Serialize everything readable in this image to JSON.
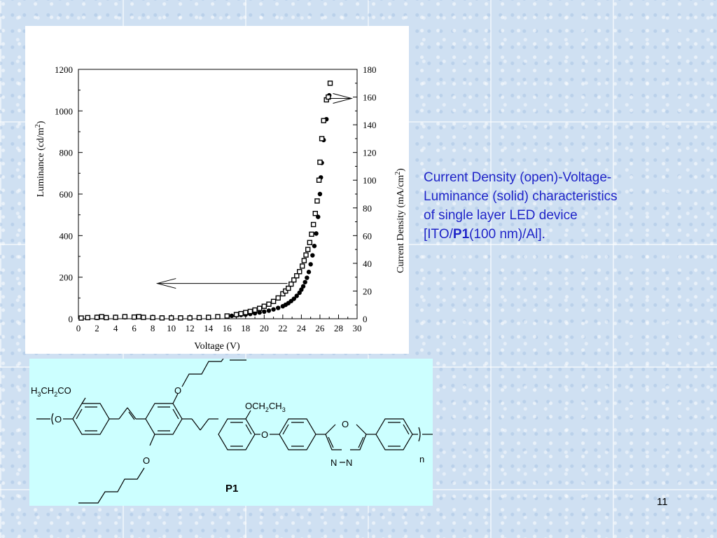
{
  "chart_data": {
    "type": "scatter",
    "xlabel": "Voltage (V)",
    "ylabel_left": "Luminance (cd/m",
    "ylabel_left_sup": "2",
    "ylabel_left_end": ")",
    "ylabel_right": "Current Density (mA/cm",
    "ylabel_right_sup": "2",
    "ylabel_right_end": ")",
    "xlim": [
      0,
      30
    ],
    "ylim_left": [
      0,
      1200
    ],
    "ylim_right": [
      0,
      180
    ],
    "x_ticks": [
      "0",
      "2",
      "4",
      "6",
      "8",
      "10",
      "12",
      "14",
      "16",
      "18",
      "20",
      "22",
      "24",
      "26",
      "28",
      "30"
    ],
    "y_left_ticks": [
      "0",
      "200",
      "400",
      "600",
      "800",
      "1000",
      "1200"
    ],
    "y_right_ticks": [
      "0",
      "20",
      "40",
      "60",
      "80",
      "100",
      "120",
      "140",
      "160",
      "180"
    ],
    "grid": false,
    "series": [
      {
        "marker": "filled-circle",
        "axis": "left",
        "points": [
          [
            0.3,
            3
          ],
          [
            1,
            4
          ],
          [
            2,
            4
          ],
          [
            3,
            5
          ],
          [
            4,
            6
          ],
          [
            5,
            7
          ],
          [
            6,
            7
          ],
          [
            7,
            7
          ],
          [
            8,
            6
          ],
          [
            9,
            6
          ],
          [
            10,
            6
          ],
          [
            11,
            6
          ],
          [
            12,
            6
          ],
          [
            13,
            7
          ],
          [
            14,
            8
          ],
          [
            15,
            10
          ],
          [
            16,
            12
          ],
          [
            16.5,
            14
          ],
          [
            17,
            16
          ],
          [
            17.5,
            18
          ],
          [
            18,
            20
          ],
          [
            18.5,
            23
          ],
          [
            19,
            26
          ],
          [
            19.5,
            30
          ],
          [
            20,
            34
          ],
          [
            20.5,
            39
          ],
          [
            21,
            45
          ],
          [
            21.5,
            52
          ],
          [
            22,
            60
          ],
          [
            22.3,
            67
          ],
          [
            22.6,
            75
          ],
          [
            22.9,
            85
          ],
          [
            23.2,
            96
          ],
          [
            23.5,
            110
          ],
          [
            23.8,
            125
          ],
          [
            24,
            140
          ],
          [
            24.2,
            156
          ],
          [
            24.4,
            176
          ],
          [
            24.6,
            197
          ],
          [
            24.8,
            225
          ],
          [
            25,
            262
          ],
          [
            25.2,
            305
          ],
          [
            25.4,
            350
          ],
          [
            25.6,
            410
          ],
          [
            25.8,
            490
          ],
          [
            26,
            600
          ],
          [
            26.1,
            680
          ],
          [
            26.2,
            750
          ],
          [
            26.4,
            860
          ],
          [
            26.7,
            960
          ],
          [
            27,
            1075
          ]
        ]
      },
      {
        "marker": "open-square",
        "axis": "right",
        "points": [
          [
            0.3,
            0.5
          ],
          [
            1,
            0.8
          ],
          [
            2,
            1
          ],
          [
            2.5,
            1.5
          ],
          [
            3,
            0.8
          ],
          [
            4,
            1
          ],
          [
            5,
            1.5
          ],
          [
            6,
            1.2
          ],
          [
            6.5,
            1.5
          ],
          [
            7,
            1
          ],
          [
            8,
            0.8
          ],
          [
            9,
            0.6
          ],
          [
            10,
            0.6
          ],
          [
            11,
            0.6
          ],
          [
            12,
            0.6
          ],
          [
            13,
            0.8
          ],
          [
            14,
            1
          ],
          [
            15,
            1.5
          ],
          [
            16,
            2
          ],
          [
            17,
            3
          ],
          [
            17.5,
            3.7
          ],
          [
            18,
            4.5
          ],
          [
            18.5,
            5.3
          ],
          [
            19,
            6.3
          ],
          [
            19.5,
            7.5
          ],
          [
            20,
            9
          ],
          [
            20.5,
            10.5
          ],
          [
            21,
            12.5
          ],
          [
            21.5,
            15
          ],
          [
            22,
            18
          ],
          [
            22.3,
            20
          ],
          [
            22.6,
            22
          ],
          [
            22.9,
            25
          ],
          [
            23.2,
            28
          ],
          [
            23.5,
            31
          ],
          [
            23.8,
            34
          ],
          [
            24.1,
            38
          ],
          [
            24.3,
            42
          ],
          [
            24.5,
            46
          ],
          [
            24.7,
            50
          ],
          [
            24.9,
            55
          ],
          [
            25.1,
            61
          ],
          [
            25.3,
            68
          ],
          [
            25.5,
            76
          ],
          [
            25.7,
            85
          ],
          [
            25.9,
            100
          ],
          [
            26,
            113
          ],
          [
            26.2,
            130
          ],
          [
            26.4,
            143
          ],
          [
            26.7,
            158
          ],
          [
            26.9,
            160
          ],
          [
            27.1,
            170
          ]
        ]
      }
    ]
  },
  "caption": {
    "line1": "Current Density (open)-Voltage-",
    "line2": "Luminance (solid) characteristics",
    "line3": "of single layer LED device",
    "line4_pre": "[ITO/",
    "line4_bold": "P1",
    "line4_post": "(100 nm)/Al]."
  },
  "structure": {
    "ethoxy_top_left": "H3CH2CO",
    "ethoxy_right": "OCH2CH3",
    "oxygen": "O",
    "nitrogen": "N",
    "repeat": "n",
    "label": "P1"
  },
  "page_number": "11"
}
